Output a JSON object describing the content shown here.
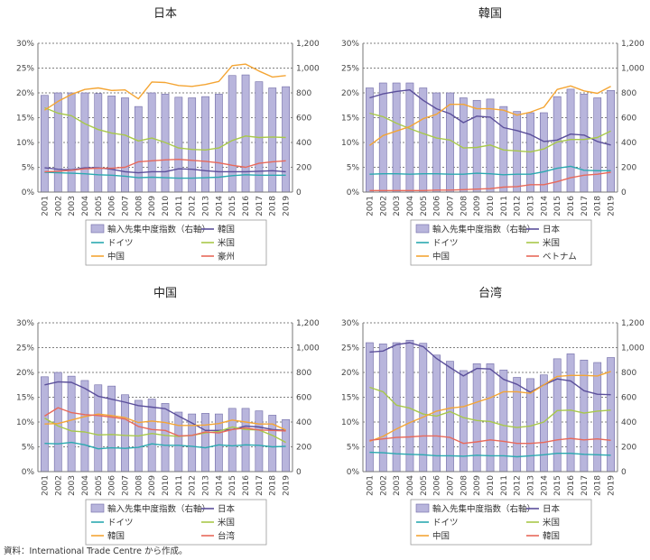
{
  "source_note": "資料：International Trade Centre から作成。",
  "colors": {
    "bar_fill": "#b8b5dc",
    "bar_stroke": "#6f6aa6",
    "grid": "#555555",
    "axis": "#777777"
  },
  "chart_data": [
    {
      "type": "bar+line",
      "title": "日本",
      "categories": [
        "2001",
        "2002",
        "2003",
        "2004",
        "2005",
        "2006",
        "2007",
        "2008",
        "2009",
        "2010",
        "2011",
        "2012",
        "2013",
        "2014",
        "2015",
        "2016",
        "2017",
        "2018",
        "2019"
      ],
      "y_left": {
        "min": 0,
        "max": 30,
        "step": 5,
        "tick_labels": [
          "0%",
          "5%",
          "10%",
          "15%",
          "20%",
          "25%",
          "30%"
        ]
      },
      "y_right": {
        "min": 0,
        "max": 1200,
        "step": 200,
        "tick_labels": [
          "0",
          "200",
          "400",
          "600",
          "800",
          "1,000",
          "1,200"
        ]
      },
      "bar": {
        "name": "輸入先集中度指数（右軸）",
        "values": [
          780,
          800,
          800,
          800,
          795,
          775,
          760,
          690,
          800,
          790,
          765,
          760,
          770,
          790,
          940,
          945,
          890,
          840,
          850
        ]
      },
      "series": [
        {
          "name": "韓国",
          "color": "#5b4f9b",
          "values": [
            4.9,
            4.6,
            4.5,
            4.9,
            4.9,
            4.6,
            4.1,
            3.9,
            4.1,
            4.1,
            4.7,
            4.6,
            4.3,
            4.1,
            4.1,
            4.1,
            4.2,
            4.3,
            4.1
          ]
        },
        {
          "name": "ドイツ",
          "color": "#2aa9b0",
          "values": [
            4.0,
            3.9,
            3.8,
            3.7,
            3.5,
            3.4,
            3.2,
            2.9,
            3.0,
            2.9,
            2.8,
            2.8,
            2.9,
            3.0,
            3.3,
            3.5,
            3.4,
            3.4,
            3.4
          ]
        },
        {
          "name": "米国",
          "color": "#a8c84a",
          "values": [
            17.0,
            15.9,
            15.4,
            13.8,
            12.6,
            11.9,
            11.5,
            10.3,
            10.9,
            10.0,
            8.9,
            8.6,
            8.5,
            8.9,
            10.4,
            11.3,
            11.0,
            11.1,
            11.0
          ]
        },
        {
          "name": "中国",
          "color": "#f4a534",
          "values": [
            16.5,
            18.3,
            19.7,
            20.7,
            21.0,
            20.5,
            20.6,
            18.8,
            22.2,
            22.1,
            21.5,
            21.3,
            21.7,
            22.3,
            25.5,
            25.8,
            24.4,
            23.2,
            23.5
          ]
        },
        {
          "name": "豪州",
          "color": "#e8695a",
          "values": [
            4.1,
            4.2,
            4.4,
            4.7,
            4.8,
            4.8,
            5.0,
            6.1,
            6.3,
            6.5,
            6.6,
            6.4,
            6.2,
            5.9,
            5.4,
            5.0,
            5.8,
            6.1,
            6.3
          ]
        }
      ],
      "legend": {
        "position": "bottom",
        "columns": 2
      }
    },
    {
      "type": "bar+line",
      "title": "韓国",
      "categories": [
        "2001",
        "2002",
        "2003",
        "2004",
        "2005",
        "2006",
        "2007",
        "2008",
        "2009",
        "2010",
        "2011",
        "2012",
        "2013",
        "2014",
        "2015",
        "2016",
        "2017",
        "2018",
        "2019"
      ],
      "y_left": {
        "min": 0,
        "max": 30,
        "step": 5,
        "tick_labels": [
          "0%",
          "5%",
          "10%",
          "15%",
          "20%",
          "25%",
          "30%"
        ]
      },
      "y_right": {
        "min": 0,
        "max": 1200,
        "step": 200,
        "tick_labels": [
          "0",
          "200",
          "400",
          "600",
          "800",
          "1,000",
          "1,200"
        ]
      },
      "bar": {
        "name": "輸入先集中度指数（右軸）",
        "values": [
          840,
          880,
          880,
          880,
          840,
          800,
          800,
          760,
          740,
          750,
          690,
          650,
          640,
          640,
          770,
          830,
          790,
          760,
          820
        ]
      },
      "series": [
        {
          "name": "日本",
          "color": "#5b4f9b",
          "values": [
            19.0,
            19.8,
            20.3,
            20.6,
            18.5,
            16.8,
            15.8,
            14.0,
            15.3,
            15.1,
            13.0,
            12.4,
            11.6,
            10.2,
            10.5,
            11.7,
            11.5,
            10.2,
            9.5
          ]
        },
        {
          "name": "ドイツ",
          "color": "#2aa9b0",
          "values": [
            3.6,
            3.7,
            3.7,
            3.6,
            3.7,
            3.7,
            3.6,
            3.6,
            3.8,
            3.7,
            3.5,
            3.6,
            3.6,
            4.1,
            4.8,
            5.2,
            4.4,
            4.3,
            4.3
          ]
        },
        {
          "name": "米国",
          "color": "#a8c84a",
          "values": [
            15.9,
            15.2,
            13.9,
            12.8,
            11.8,
            10.9,
            10.5,
            8.9,
            9.0,
            9.5,
            8.5,
            8.3,
            8.1,
            8.7,
            10.1,
            10.6,
            10.6,
            11.0,
            12.3
          ]
        },
        {
          "name": "中国",
          "color": "#f4a534",
          "values": [
            9.4,
            11.4,
            12.3,
            13.2,
            14.8,
            15.7,
            17.7,
            17.7,
            16.8,
            16.8,
            16.5,
            15.5,
            16.1,
            17.1,
            20.7,
            21.4,
            20.4,
            19.9,
            21.3
          ]
        },
        {
          "name": "ベトナム",
          "color": "#e8695a",
          "values": [
            0.3,
            0.3,
            0.3,
            0.3,
            0.3,
            0.4,
            0.4,
            0.5,
            0.6,
            0.7,
            1.0,
            1.1,
            1.5,
            1.5,
            2.1,
            2.9,
            3.4,
            3.6,
            4.0
          ]
        }
      ],
      "legend": {
        "position": "bottom",
        "columns": 2
      }
    },
    {
      "type": "bar+line",
      "title": "中国",
      "categories": [
        "2001",
        "2002",
        "2003",
        "2004",
        "2005",
        "2006",
        "2007",
        "2008",
        "2009",
        "2010",
        "2011",
        "2012",
        "2013",
        "2014",
        "2015",
        "2016",
        "2017",
        "2018",
        "2019"
      ],
      "y_left": {
        "min": 0,
        "max": 30,
        "step": 5,
        "tick_labels": [
          "0%",
          "5%",
          "10%",
          "15%",
          "20%",
          "25%",
          "30%"
        ]
      },
      "y_right": {
        "min": 0,
        "max": 1200,
        "step": 200,
        "tick_labels": [
          "0",
          "200",
          "400",
          "600",
          "800",
          "1,000",
          "1,200"
        ]
      },
      "bar": {
        "name": "輸入先集中度指数（右軸）",
        "values": [
          765,
          800,
          770,
          735,
          700,
          690,
          620,
          575,
          585,
          550,
          480,
          465,
          470,
          465,
          510,
          510,
          490,
          455,
          420
        ]
      },
      "series": [
        {
          "name": "日本",
          "color": "#5b4f9b",
          "values": [
            17.5,
            18.1,
            18.0,
            16.8,
            15.2,
            14.6,
            14.0,
            13.3,
            13.0,
            12.7,
            11.2,
            9.8,
            8.3,
            8.3,
            8.5,
            9.2,
            9.0,
            8.5,
            8.3
          ]
        },
        {
          "name": "ドイツ",
          "color": "#2aa9b0",
          "values": [
            5.7,
            5.6,
            5.9,
            5.4,
            4.6,
            4.8,
            4.7,
            4.9,
            5.6,
            5.3,
            5.3,
            5.1,
            4.8,
            5.4,
            5.2,
            5.4,
            5.3,
            5.0,
            5.1
          ]
        },
        {
          "name": "米国",
          "color": "#a8c84a",
          "values": [
            10.8,
            9.2,
            8.2,
            8.0,
            7.4,
            7.5,
            7.3,
            7.2,
            7.7,
            7.3,
            7.1,
            7.3,
            7.8,
            8.1,
            9.0,
            8.5,
            8.4,
            7.3,
            5.9
          ]
        },
        {
          "name": "韓国",
          "color": "#f4a534",
          "values": [
            9.6,
            9.7,
            10.4,
            11.1,
            11.6,
            11.3,
            10.9,
            9.9,
            10.2,
            9.9,
            9.3,
            9.3,
            9.4,
            9.7,
            10.4,
            10.0,
            9.6,
            9.6,
            8.4
          ]
        },
        {
          "name": "台湾",
          "color": "#e8695a",
          "values": [
            11.2,
            12.9,
            11.9,
            11.5,
            11.3,
            11.0,
            10.6,
            9.1,
            8.5,
            8.3,
            7.2,
            7.3,
            8.0,
            7.8,
            8.5,
            8.8,
            8.4,
            8.3,
            8.2
          ]
        }
      ],
      "legend": {
        "position": "bottom",
        "columns": 2
      }
    },
    {
      "type": "bar+line",
      "title": "台湾",
      "categories": [
        "2001",
        "2002",
        "2003",
        "2004",
        "2005",
        "2006",
        "2007",
        "2008",
        "2009",
        "2010",
        "2011",
        "2012",
        "2013",
        "2014",
        "2015",
        "2016",
        "2017",
        "2018",
        "2019"
      ],
      "y_left": {
        "min": 0,
        "max": 30,
        "step": 5,
        "tick_labels": [
          "0%",
          "5%",
          "10%",
          "15%",
          "20%",
          "25%",
          "30%"
        ]
      },
      "y_right": {
        "min": 0,
        "max": 1200,
        "step": 200,
        "tick_labels": [
          "0",
          "200",
          "400",
          "600",
          "800",
          "1,000",
          "1,200"
        ]
      },
      "bar": {
        "name": "輸入先集中度指数（右軸）",
        "values": [
          1040,
          1030,
          1040,
          1060,
          1035,
          940,
          890,
          815,
          870,
          870,
          820,
          760,
          750,
          780,
          910,
          950,
          900,
          880,
          920
        ]
      },
      "series": [
        {
          "name": "日本",
          "color": "#5b4f9b",
          "values": [
            24.1,
            24.3,
            25.6,
            26.0,
            25.2,
            22.8,
            21.0,
            19.3,
            20.8,
            20.7,
            18.6,
            17.6,
            16.0,
            17.5,
            18.7,
            18.3,
            16.3,
            15.6,
            15.5
          ]
        },
        {
          "name": "ドイツ",
          "color": "#2aa9b0",
          "values": [
            3.9,
            3.8,
            3.6,
            3.5,
            3.4,
            3.2,
            3.2,
            3.1,
            3.3,
            3.2,
            3.2,
            3.0,
            3.2,
            3.4,
            3.7,
            3.7,
            3.5,
            3.4,
            3.3
          ]
        },
        {
          "name": "米国",
          "color": "#a8c84a",
          "values": [
            17.0,
            16.1,
            13.4,
            12.8,
            11.6,
            11.2,
            12.1,
            10.9,
            10.3,
            10.1,
            9.3,
            8.9,
            9.2,
            10.0,
            12.3,
            12.4,
            11.8,
            12.2,
            12.4
          ]
        },
        {
          "name": "中国",
          "color": "#f4a534",
          "values": [
            6.1,
            7.1,
            8.6,
            9.9,
            11.0,
            12.2,
            12.8,
            13.1,
            14.0,
            14.9,
            16.1,
            16.1,
            15.8,
            17.5,
            19.2,
            19.4,
            19.4,
            19.3,
            20.2
          ]
        },
        {
          "name": "韓国",
          "color": "#e8695a",
          "values": [
            6.3,
            6.6,
            6.9,
            7.0,
            7.2,
            7.2,
            6.9,
            5.7,
            6.0,
            6.4,
            6.1,
            5.7,
            5.7,
            5.9,
            6.4,
            6.7,
            6.4,
            6.6,
            6.3
          ]
        }
      ],
      "legend": {
        "position": "bottom",
        "columns": 2
      }
    }
  ]
}
